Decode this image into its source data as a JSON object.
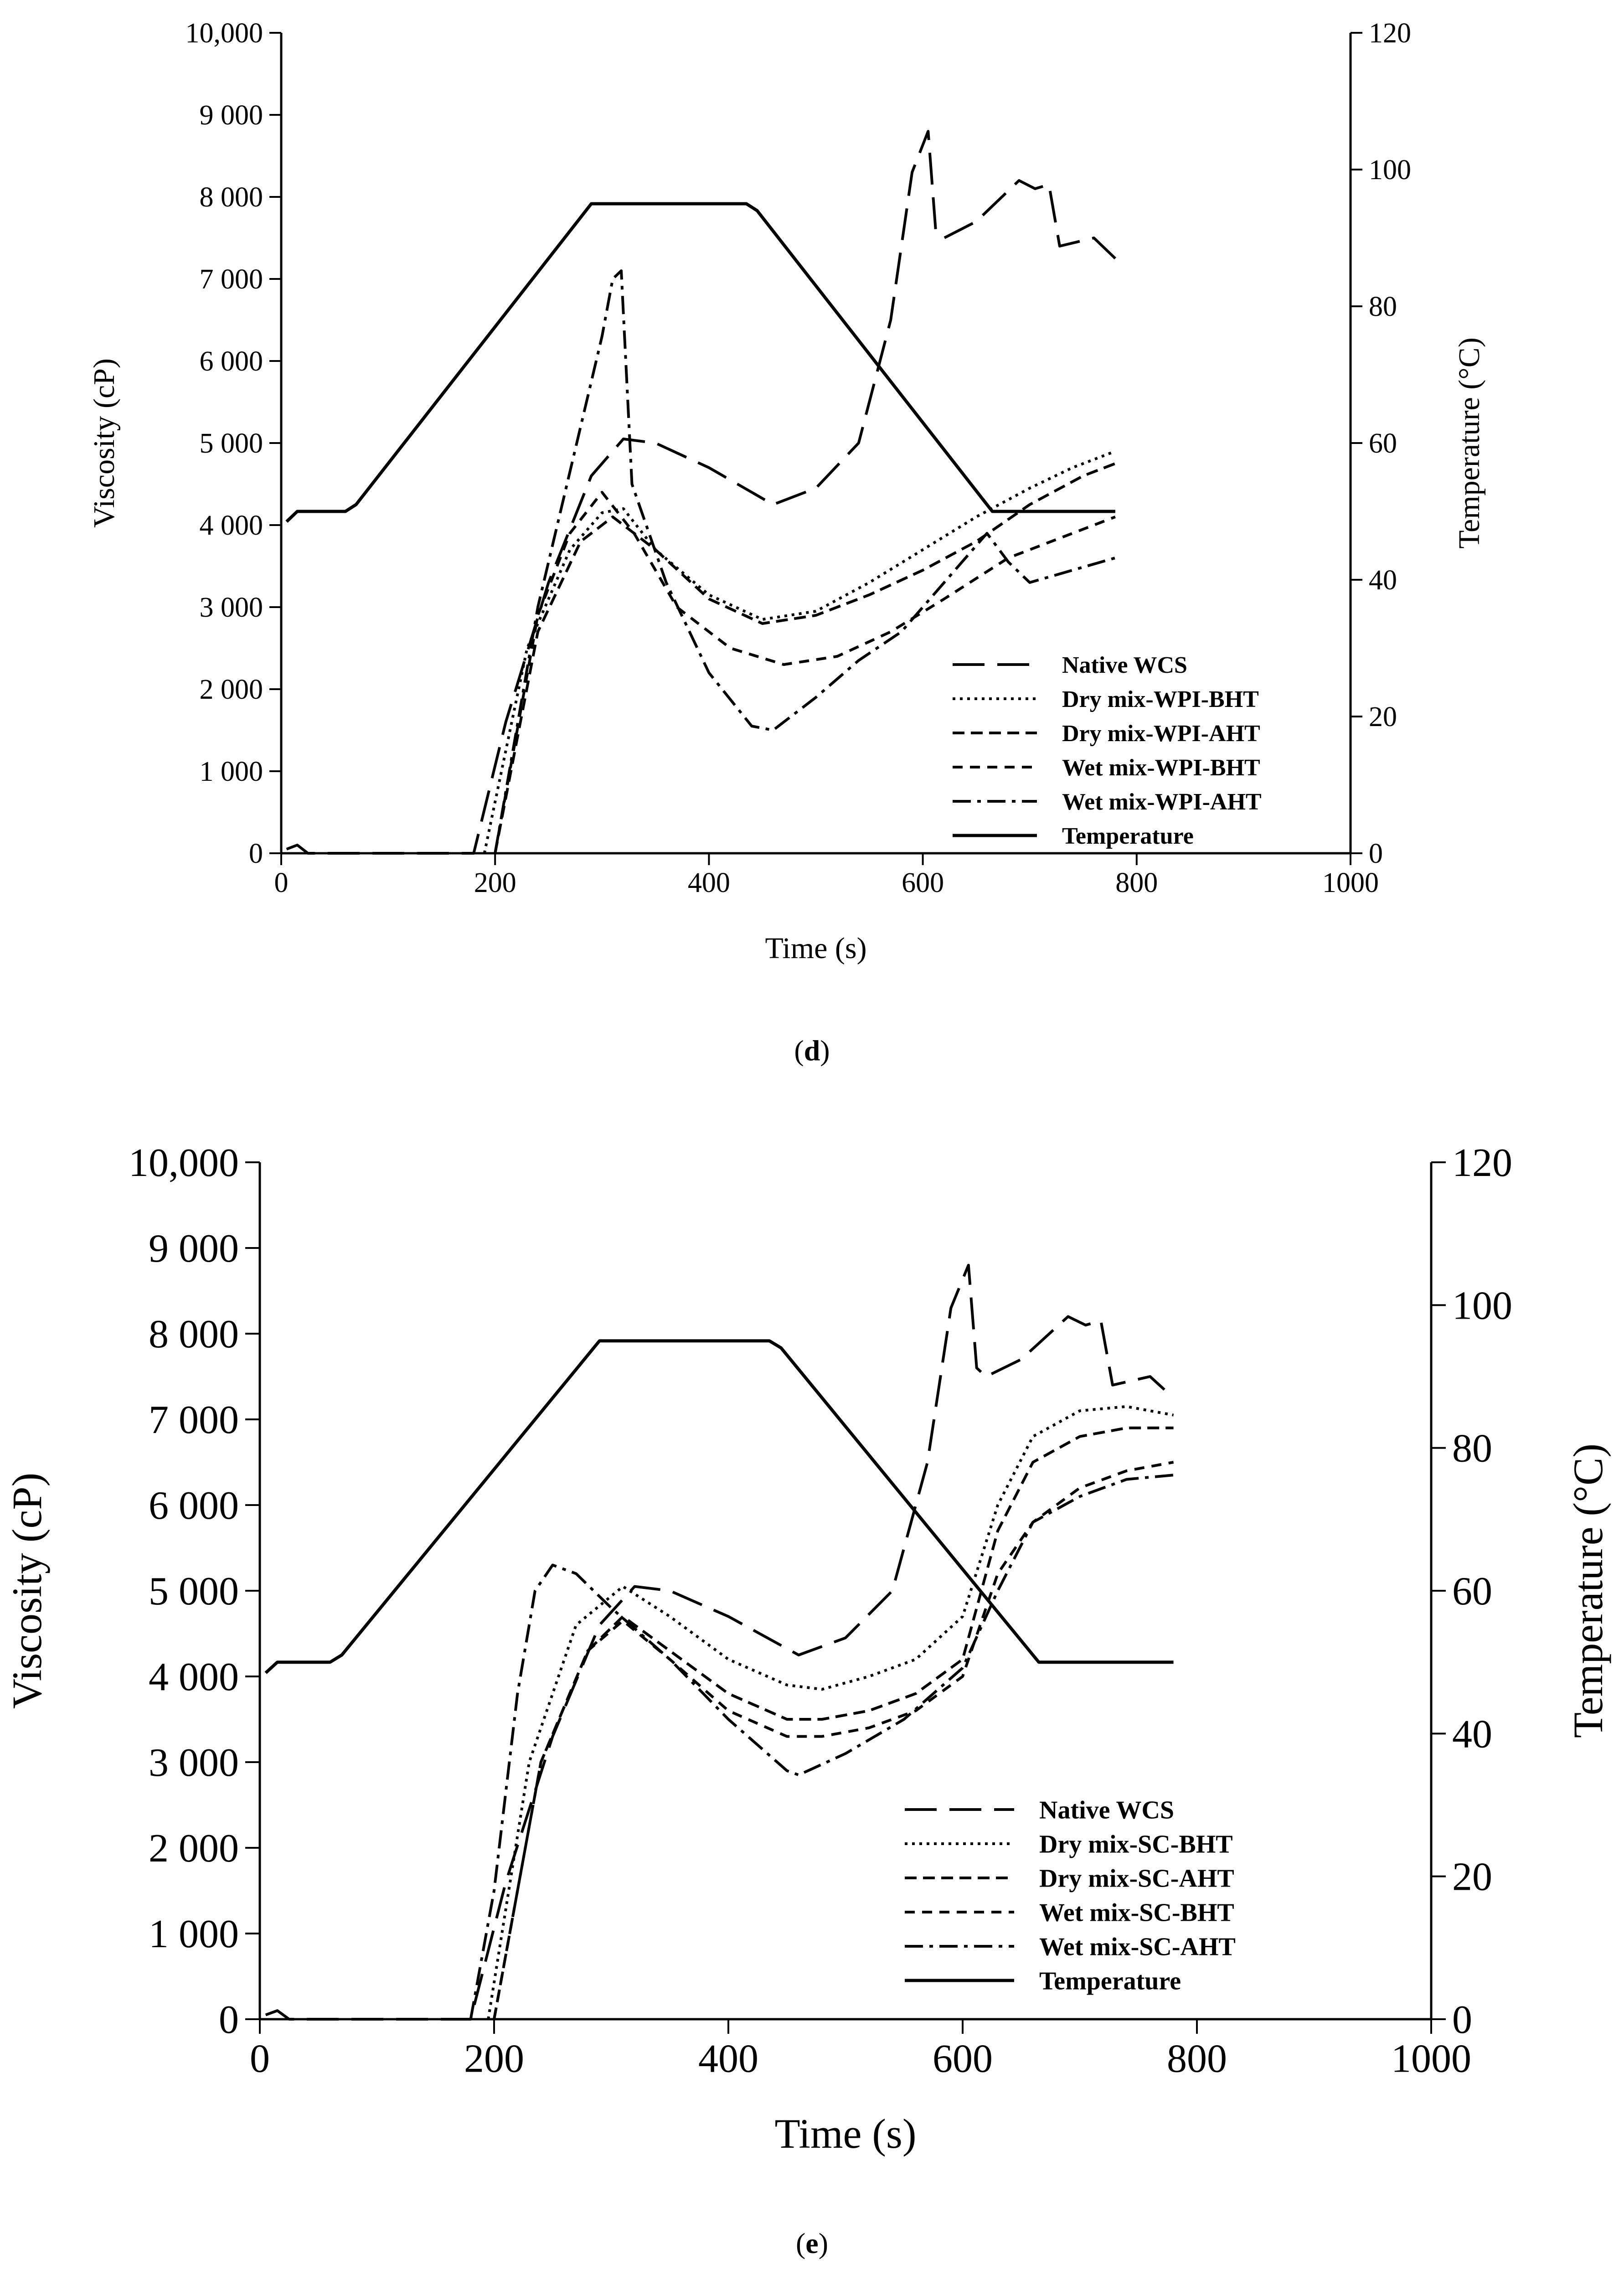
{
  "captions": {
    "d": "d",
    "e": "e"
  },
  "chart_data": [
    {
      "panel": "d",
      "type": "line",
      "xlabel": "Time (s)",
      "ylabel": "Viscosity (cP)",
      "y2label": "Temperature (°C)",
      "xlim": [
        0,
        1000
      ],
      "ylim": [
        0,
        10000
      ],
      "y2lim": [
        0,
        120
      ],
      "xticks": [
        "0",
        "200",
        "400",
        "600",
        "800",
        "1000"
      ],
      "yticks": [
        "0",
        "1 000",
        "2 000",
        "3 000",
        "4 000",
        "5 000",
        "6 000",
        "7 000",
        "8 000",
        "9 000",
        "10,000"
      ],
      "y2ticks": [
        "0",
        "20",
        "40",
        "60",
        "80",
        "100",
        "120"
      ],
      "legend_position": "bottom-right",
      "series": [
        {
          "name": "Native WCS",
          "style": "longdash",
          "axis": "left",
          "x": [
            5,
            15,
            25,
            180,
            210,
            250,
            290,
            320,
            350,
            400,
            460,
            500,
            540,
            570,
            590,
            605,
            612,
            620,
            650,
            690,
            705,
            718,
            728,
            760,
            780
          ],
          "y": [
            50,
            100,
            0,
            0,
            1600,
            3300,
            4600,
            5050,
            5000,
            4700,
            4250,
            4450,
            5000,
            6500,
            8300,
            8800,
            7600,
            7500,
            7700,
            8200,
            8100,
            8150,
            7400,
            7500,
            7250
          ]
        },
        {
          "name": "Dry mix-WPI-BHT",
          "style": "dotted",
          "axis": "left",
          "x": [
            190,
            230,
            270,
            300,
            320,
            350,
            400,
            450,
            500,
            550,
            600,
            650,
            700,
            740,
            780
          ],
          "y": [
            0,
            2500,
            3700,
            4150,
            4200,
            3700,
            3150,
            2850,
            2950,
            3300,
            3700,
            4100,
            4450,
            4700,
            4900
          ]
        },
        {
          "name": "Dry mix-WPI-AHT",
          "style": "dashed",
          "axis": "left",
          "x": [
            200,
            240,
            280,
            310,
            350,
            400,
            450,
            500,
            550,
            600,
            650,
            700,
            750,
            780
          ],
          "y": [
            0,
            2700,
            3800,
            4100,
            3700,
            3100,
            2800,
            2900,
            3150,
            3450,
            3800,
            4250,
            4600,
            4750
          ]
        },
        {
          "name": "Wet mix-WPI-BHT",
          "style": "shortdash",
          "axis": "left",
          "x": [
            200,
            240,
            270,
            300,
            330,
            370,
            420,
            470,
            520,
            570,
            620,
            680,
            730,
            780
          ],
          "y": [
            0,
            2900,
            3900,
            4400,
            3900,
            3000,
            2500,
            2300,
            2400,
            2700,
            3100,
            3600,
            3850,
            4100
          ]
        },
        {
          "name": "Wet mix-WPI-AHT",
          "style": "dashdot",
          "axis": "left",
          "x": [
            200,
            240,
            280,
            300,
            310,
            318,
            328,
            360,
            400,
            440,
            460,
            500,
            540,
            580,
            620,
            660,
            680,
            700,
            740,
            780
          ],
          "y": [
            0,
            3000,
            5200,
            6300,
            7000,
            7100,
            4500,
            3300,
            2200,
            1550,
            1500,
            1900,
            2350,
            2700,
            3300,
            3900,
            3550,
            3300,
            3450,
            3600
          ]
        },
        {
          "name": "Temperature",
          "style": "solid",
          "axis": "right",
          "x": [
            5,
            15,
            60,
            70,
            290,
            300,
            435,
            445,
            665,
            780
          ],
          "y": [
            48.5,
            50,
            50,
            51,
            95,
            95,
            95,
            94,
            50,
            50
          ]
        }
      ]
    },
    {
      "panel": "e",
      "type": "line",
      "xlabel": "Time (s)",
      "ylabel": "Viscosity (cP)",
      "y2label": "Temperature (°C)",
      "xlim": [
        0,
        1000
      ],
      "ylim": [
        0,
        10000
      ],
      "y2lim": [
        0,
        120
      ],
      "xticks": [
        "0",
        "200",
        "400",
        "600",
        "800",
        "1000"
      ],
      "yticks": [
        "0",
        "1 000",
        "2 000",
        "3 000",
        "4 000",
        "5 000",
        "6 000",
        "7 000",
        "8 000",
        "9 000",
        "10,000"
      ],
      "y2ticks": [
        "0",
        "20",
        "40",
        "60",
        "80",
        "100",
        "120"
      ],
      "legend_position": "bottom-right",
      "series": [
        {
          "name": "Native WCS",
          "style": "longdash",
          "axis": "left",
          "x": [
            5,
            15,
            25,
            180,
            210,
            250,
            290,
            320,
            350,
            400,
            460,
            500,
            540,
            570,
            590,
            605,
            612,
            620,
            650,
            690,
            705,
            718,
            728,
            760,
            780
          ],
          "y": [
            50,
            100,
            0,
            0,
            1600,
            3300,
            4600,
            5050,
            5000,
            4700,
            4250,
            4450,
            5000,
            6500,
            8300,
            8800,
            7600,
            7500,
            7700,
            8200,
            8100,
            8150,
            7400,
            7500,
            7250
          ]
        },
        {
          "name": "Dry mix-SC-BHT",
          "style": "dotted",
          "axis": "left",
          "x": [
            195,
            230,
            270,
            310,
            350,
            400,
            450,
            480,
            520,
            560,
            600,
            630,
            660,
            700,
            740,
            780
          ],
          "y": [
            0,
            3000,
            4600,
            5050,
            4700,
            4200,
            3900,
            3850,
            4000,
            4200,
            4700,
            6000,
            6800,
            7100,
            7150,
            7050
          ]
        },
        {
          "name": "Dry mix-SC-AHT",
          "style": "dashed",
          "axis": "left",
          "x": [
            200,
            240,
            280,
            310,
            350,
            400,
            450,
            480,
            520,
            560,
            600,
            630,
            660,
            700,
            740,
            780
          ],
          "y": [
            0,
            3000,
            4300,
            4700,
            4300,
            3800,
            3500,
            3500,
            3600,
            3800,
            4200,
            5700,
            6500,
            6800,
            6900,
            6900
          ]
        },
        {
          "name": "Wet mix-SC-BHT",
          "style": "shortdash",
          "axis": "left",
          "x": [
            200,
            240,
            280,
            310,
            350,
            400,
            450,
            480,
            520,
            560,
            600,
            630,
            660,
            700,
            740,
            780
          ],
          "y": [
            0,
            3000,
            4300,
            4650,
            4200,
            3600,
            3300,
            3300,
            3400,
            3600,
            4000,
            5200,
            5800,
            6200,
            6400,
            6500
          ]
        },
        {
          "name": "Wet mix-SC-AHT",
          "style": "dashdot",
          "axis": "left",
          "x": [
            180,
            200,
            220,
            235,
            250,
            270,
            300,
            350,
            400,
            450,
            460,
            500,
            550,
            600,
            630,
            660,
            700,
            740,
            780
          ],
          "y": [
            0,
            1500,
            3800,
            5000,
            5300,
            5200,
            4800,
            4200,
            3500,
            2900,
            2850,
            3100,
            3500,
            4100,
            5000,
            5800,
            6100,
            6300,
            6350
          ]
        },
        {
          "name": "Temperature",
          "style": "solid",
          "axis": "right",
          "x": [
            5,
            15,
            60,
            70,
            290,
            300,
            435,
            445,
            665,
            780
          ],
          "y": [
            48.5,
            50,
            50,
            51,
            95,
            95,
            95,
            94,
            50,
            50
          ]
        }
      ]
    }
  ]
}
